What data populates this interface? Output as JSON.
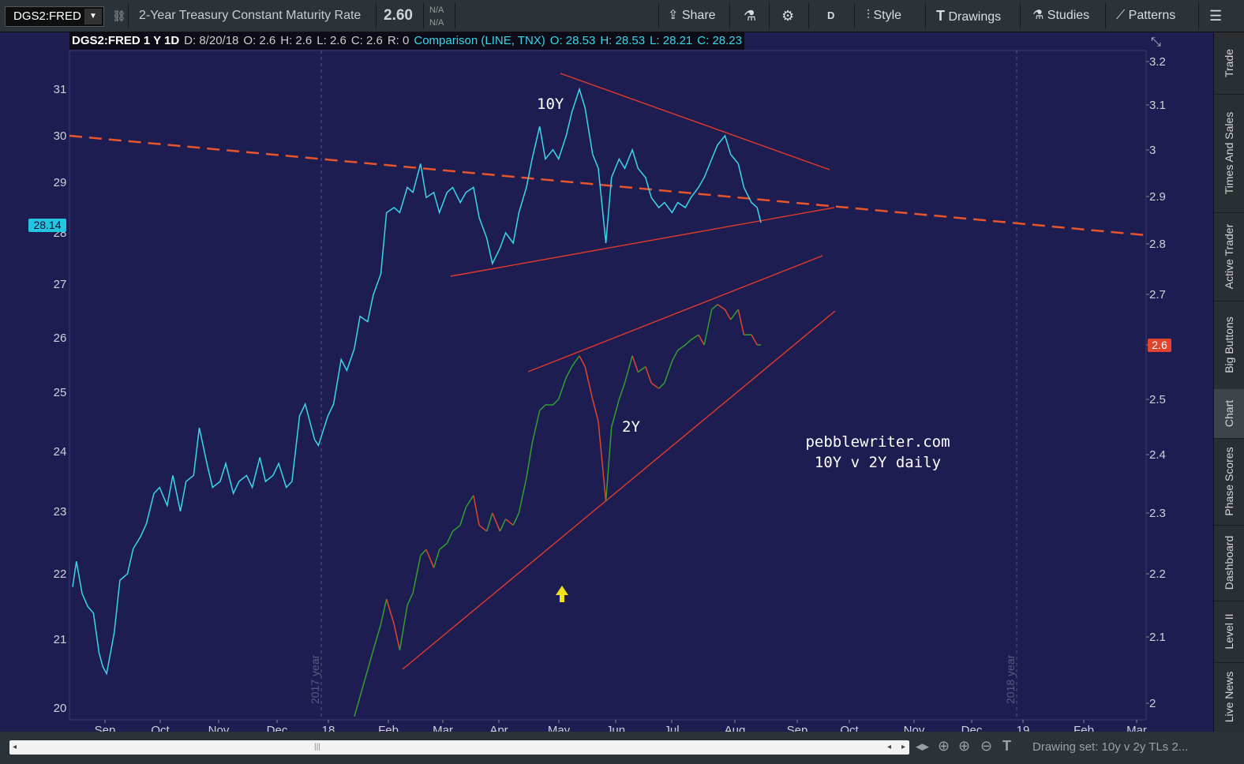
{
  "toolbar": {
    "symbol": "DGS2:FRED",
    "description": "2-Year Treasury Constant Maturity Rate",
    "last_price": "2.60",
    "bid": "N/A",
    "ask": "N/A",
    "share_label": "Share",
    "aggregation_label": "D",
    "style_label": "Style",
    "drawings_label": "Drawings",
    "studies_label": "Studies",
    "patterns_label": "Patterns"
  },
  "infobar": {
    "title": "DGS2:FRED 1 Y 1D",
    "d": "D: 8/20/18",
    "o": "O: 2.6",
    "h": "H: 2.6",
    "l": "L: 2.6",
    "c": "C: 2.6",
    "r": "R: 0",
    "comparison": "Comparison (LINE, TNX)",
    "co": "O: 28.53",
    "ch": "H: 28.53",
    "cl": "L: 28.21",
    "cc": "C: 28.23"
  },
  "sidebar_tabs": [
    "Trade",
    "Times And Sales",
    "Active Trader",
    "Big Buttons",
    "Chart",
    "Phase Scores",
    "Dashboard",
    "Level II",
    "Live News"
  ],
  "bottombar": {
    "drawing_set": "Drawing set: 10y v 2y TLs 2..."
  },
  "colors": {
    "background": "#1e1d52",
    "tnx_line": "#3ad6e8",
    "up": "#2fa12f",
    "down": "#e0452c",
    "trendline": "#e03a2a",
    "dashed_line": "#e8552a",
    "arrow": "#f1e21b"
  },
  "chart_data": {
    "type": "line",
    "x_tick_labels": [
      "Sep",
      "Oct",
      "Nov",
      "Dec",
      "18",
      "Feb",
      "Mar",
      "Apr",
      "May",
      "Jun",
      "Jul",
      "Aug",
      "Sep",
      "Oct",
      "Nov",
      "Dec",
      "19",
      "Feb",
      "Mar"
    ],
    "year_markers": [
      "2017 year",
      "2018 year"
    ],
    "left_axis": {
      "label": "",
      "ticks": [
        20,
        21,
        22,
        23,
        24,
        25,
        26,
        27,
        28,
        29,
        30,
        31
      ],
      "current_value_label": "28.14"
    },
    "right_axis": {
      "label": "",
      "ticks": [
        2,
        2.1,
        2.2,
        2.3,
        2.4,
        2.5,
        2.6,
        2.7,
        2.8,
        2.9,
        3,
        3.1,
        3.2
      ],
      "current_value_label": "2.6"
    },
    "series": [
      {
        "name": "TNX",
        "axis": "left",
        "points": [
          [
            "2017-08-21",
            21.8
          ],
          [
            "2017-08-23",
            22.2
          ],
          [
            "2017-08-26",
            21.7
          ],
          [
            "2017-08-29",
            21.5
          ],
          [
            "2017-09-01",
            21.4
          ],
          [
            "2017-09-04",
            20.8
          ],
          [
            "2017-09-06",
            20.6
          ],
          [
            "2017-09-08",
            20.5
          ],
          [
            "2017-09-12",
            21.1
          ],
          [
            "2017-09-15",
            21.9
          ],
          [
            "2017-09-19",
            22.0
          ],
          [
            "2017-09-22",
            22.4
          ],
          [
            "2017-09-26",
            22.6
          ],
          [
            "2017-09-29",
            22.8
          ],
          [
            "2017-10-03",
            23.3
          ],
          [
            "2017-10-06",
            23.4
          ],
          [
            "2017-10-10",
            23.1
          ],
          [
            "2017-10-13",
            23.6
          ],
          [
            "2017-10-17",
            23.0
          ],
          [
            "2017-10-20",
            23.5
          ],
          [
            "2017-10-24",
            23.6
          ],
          [
            "2017-10-27",
            24.4
          ],
          [
            "2017-10-31",
            23.8
          ],
          [
            "2017-11-03",
            23.4
          ],
          [
            "2017-11-07",
            23.5
          ],
          [
            "2017-11-10",
            23.8
          ],
          [
            "2017-11-14",
            23.3
          ],
          [
            "2017-11-17",
            23.5
          ],
          [
            "2017-11-21",
            23.6
          ],
          [
            "2017-11-24",
            23.4
          ],
          [
            "2017-11-28",
            23.9
          ],
          [
            "2017-12-01",
            23.5
          ],
          [
            "2017-12-05",
            23.6
          ],
          [
            "2017-12-08",
            23.8
          ],
          [
            "2017-12-12",
            23.4
          ],
          [
            "2017-12-15",
            23.5
          ],
          [
            "2017-12-19",
            24.6
          ],
          [
            "2017-12-22",
            24.8
          ],
          [
            "2017-12-27",
            24.2
          ],
          [
            "2017-12-29",
            24.1
          ],
          [
            "2018-01-03",
            24.6
          ],
          [
            "2018-01-06",
            24.8
          ],
          [
            "2018-01-10",
            25.6
          ],
          [
            "2018-01-13",
            25.4
          ],
          [
            "2018-01-17",
            25.8
          ],
          [
            "2018-01-20",
            26.4
          ],
          [
            "2018-01-24",
            26.3
          ],
          [
            "2018-01-27",
            26.8
          ],
          [
            "2018-01-31",
            27.2
          ],
          [
            "2018-02-03",
            28.4
          ],
          [
            "2018-02-07",
            28.5
          ],
          [
            "2018-02-10",
            28.4
          ],
          [
            "2018-02-14",
            28.9
          ],
          [
            "2018-02-17",
            28.8
          ],
          [
            "2018-02-21",
            29.4
          ],
          [
            "2018-02-24",
            28.7
          ],
          [
            "2018-02-28",
            28.8
          ],
          [
            "2018-03-03",
            28.4
          ],
          [
            "2018-03-07",
            28.8
          ],
          [
            "2018-03-10",
            28.9
          ],
          [
            "2018-03-14",
            28.6
          ],
          [
            "2018-03-17",
            28.8
          ],
          [
            "2018-03-21",
            28.9
          ],
          [
            "2018-03-24",
            28.3
          ],
          [
            "2018-03-28",
            27.9
          ],
          [
            "2018-03-31",
            27.4
          ],
          [
            "2018-04-04",
            27.7
          ],
          [
            "2018-04-07",
            28.0
          ],
          [
            "2018-04-11",
            27.8
          ],
          [
            "2018-04-14",
            28.4
          ],
          [
            "2018-04-18",
            28.9
          ],
          [
            "2018-04-21",
            29.5
          ],
          [
            "2018-04-25",
            30.2
          ],
          [
            "2018-04-28",
            29.5
          ],
          [
            "2018-05-02",
            29.7
          ],
          [
            "2018-05-05",
            29.5
          ],
          [
            "2018-05-09",
            30.0
          ],
          [
            "2018-05-12",
            30.5
          ],
          [
            "2018-05-16",
            31.0
          ],
          [
            "2018-05-19",
            30.6
          ],
          [
            "2018-05-23",
            29.6
          ],
          [
            "2018-05-26",
            29.3
          ],
          [
            "2018-05-30",
            27.8
          ],
          [
            "2018-06-02",
            29.1
          ],
          [
            "2018-06-06",
            29.5
          ],
          [
            "2018-06-09",
            29.3
          ],
          [
            "2018-06-13",
            29.7
          ],
          [
            "2018-06-16",
            29.3
          ],
          [
            "2018-06-20",
            29.1
          ],
          [
            "2018-06-23",
            28.7
          ],
          [
            "2018-06-27",
            28.5
          ],
          [
            "2018-06-30",
            28.6
          ],
          [
            "2018-07-04",
            28.4
          ],
          [
            "2018-07-07",
            28.6
          ],
          [
            "2018-07-11",
            28.5
          ],
          [
            "2018-07-14",
            28.7
          ],
          [
            "2018-07-18",
            28.9
          ],
          [
            "2018-07-21",
            29.1
          ],
          [
            "2018-07-25",
            29.5
          ],
          [
            "2018-07-28",
            29.8
          ],
          [
            "2018-08-01",
            30.0
          ],
          [
            "2018-08-04",
            29.6
          ],
          [
            "2018-08-08",
            29.4
          ],
          [
            "2018-08-11",
            28.9
          ],
          [
            "2018-08-15",
            28.6
          ],
          [
            "2018-08-18",
            28.5
          ],
          [
            "2018-08-20",
            28.2
          ]
        ]
      },
      {
        "name": "DGS2",
        "axis": "right",
        "points": [
          [
            "2018-01-17",
            1.98
          ],
          [
            "2018-01-20",
            2.01
          ],
          [
            "2018-01-24",
            2.05
          ],
          [
            "2018-01-27",
            2.08
          ],
          [
            "2018-01-31",
            2.12
          ],
          [
            "2018-02-03",
            2.16
          ],
          [
            "2018-02-07",
            2.12
          ],
          [
            "2018-02-10",
            2.08
          ],
          [
            "2018-02-14",
            2.15
          ],
          [
            "2018-02-17",
            2.17
          ],
          [
            "2018-02-21",
            2.23
          ],
          [
            "2018-02-24",
            2.24
          ],
          [
            "2018-02-28",
            2.21
          ],
          [
            "2018-03-03",
            2.24
          ],
          [
            "2018-03-07",
            2.25
          ],
          [
            "2018-03-10",
            2.27
          ],
          [
            "2018-03-14",
            2.28
          ],
          [
            "2018-03-17",
            2.31
          ],
          [
            "2018-03-21",
            2.33
          ],
          [
            "2018-03-24",
            2.28
          ],
          [
            "2018-03-28",
            2.27
          ],
          [
            "2018-03-31",
            2.3
          ],
          [
            "2018-04-04",
            2.27
          ],
          [
            "2018-04-07",
            2.29
          ],
          [
            "2018-04-11",
            2.28
          ],
          [
            "2018-04-14",
            2.3
          ],
          [
            "2018-04-18",
            2.36
          ],
          [
            "2018-04-21",
            2.42
          ],
          [
            "2018-04-25",
            2.48
          ],
          [
            "2018-04-28",
            2.49
          ],
          [
            "2018-05-02",
            2.49
          ],
          [
            "2018-05-05",
            2.5
          ],
          [
            "2018-05-09",
            2.54
          ],
          [
            "2018-05-12",
            2.56
          ],
          [
            "2018-05-16",
            2.58
          ],
          [
            "2018-05-19",
            2.56
          ],
          [
            "2018-05-23",
            2.5
          ],
          [
            "2018-05-26",
            2.46
          ],
          [
            "2018-05-30",
            2.32
          ],
          [
            "2018-06-02",
            2.45
          ],
          [
            "2018-06-06",
            2.5
          ],
          [
            "2018-06-09",
            2.53
          ],
          [
            "2018-06-13",
            2.58
          ],
          [
            "2018-06-16",
            2.55
          ],
          [
            "2018-06-20",
            2.56
          ],
          [
            "2018-06-23",
            2.53
          ],
          [
            "2018-06-27",
            2.52
          ],
          [
            "2018-06-30",
            2.53
          ],
          [
            "2018-07-04",
            2.57
          ],
          [
            "2018-07-07",
            2.59
          ],
          [
            "2018-07-11",
            2.6
          ],
          [
            "2018-07-14",
            2.61
          ],
          [
            "2018-07-18",
            2.62
          ],
          [
            "2018-07-21",
            2.6
          ],
          [
            "2018-07-25",
            2.67
          ],
          [
            "2018-07-28",
            2.68
          ],
          [
            "2018-08-01",
            2.67
          ],
          [
            "2018-08-04",
            2.65
          ],
          [
            "2018-08-08",
            2.67
          ],
          [
            "2018-08-11",
            2.62
          ],
          [
            "2018-08-15",
            2.62
          ],
          [
            "2018-08-18",
            2.6
          ],
          [
            "2018-08-20",
            2.6
          ]
        ]
      }
    ],
    "annotations": [
      "10Y",
      "2Y",
      "pebblewriter.com",
      "10Y v 2Y daily"
    ]
  }
}
